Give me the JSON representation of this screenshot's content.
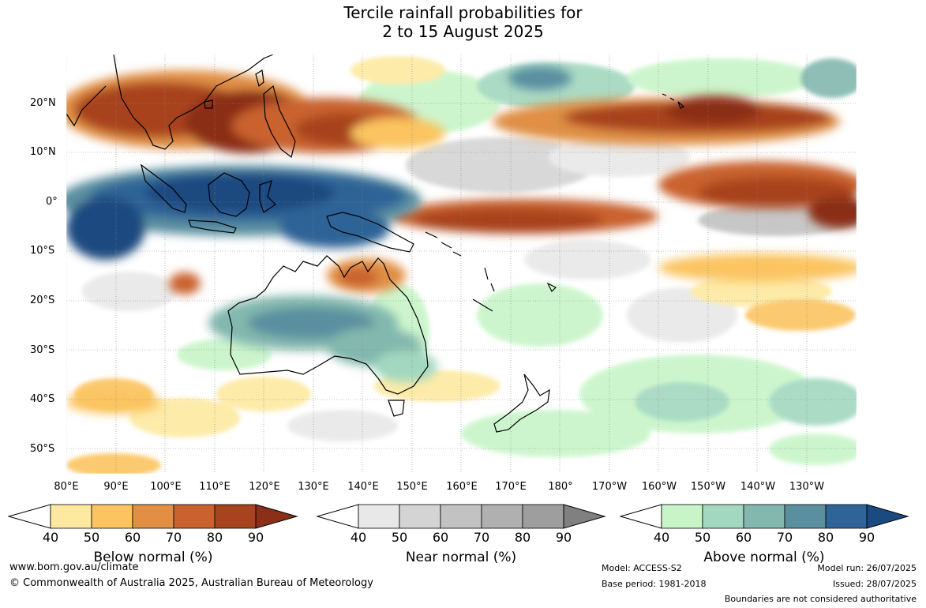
{
  "title": "Tercile rainfall probabilities for\n2 to 15 August 2025",
  "map": {
    "lat_labels": [
      "20°N",
      "10°N",
      "0°",
      "10°S",
      "20°S",
      "30°S",
      "40°S",
      "50°S"
    ],
    "lon_labels": [
      "80°E",
      "90°E",
      "100°E",
      "110°E",
      "120°E",
      "130°E",
      "140°E",
      "150°E",
      "160°E",
      "170°E",
      "180°",
      "170°W",
      "160°W",
      "150°W",
      "140°W",
      "130°W"
    ],
    "colors": {
      "below": [
        "#fde9a0",
        "#fbc460",
        "#e08f45",
        "#c9622f",
        "#a8431f",
        "#8b2f18"
      ],
      "near": [
        "#e8e8e8",
        "#d4d4d4",
        "#c2c2c2",
        "#b0b0b0",
        "#9e9e9e",
        "#808080"
      ],
      "above": [
        "#c8f5c8",
        "#a2d8bf",
        "#82b8ad",
        "#5a8fa0",
        "#2e6497",
        "#1b4a80"
      ]
    }
  },
  "legends": {
    "below": {
      "title": "Below normal (%)",
      "ticks": [
        "40",
        "50",
        "60",
        "70",
        "80",
        "90"
      ]
    },
    "near": {
      "title": "Near normal (%)",
      "ticks": [
        "40",
        "50",
        "60",
        "70",
        "80",
        "90"
      ]
    },
    "above": {
      "title": "Above normal (%)",
      "ticks": [
        "40",
        "50",
        "60",
        "70",
        "80",
        "90"
      ]
    }
  },
  "footer": {
    "url": "www.bom.gov.au/climate",
    "copyright": "© Commonwealth of Australia 2025, Australian Bureau of Meteorology",
    "model": "Model: ACCESS-S2",
    "base_period": "Base period: 1981-2018",
    "model_run": "Model run: 26/07/2025",
    "issued": "Issued: 28/07/2025",
    "boundaries": "Boundaries are not considered authoritative"
  }
}
